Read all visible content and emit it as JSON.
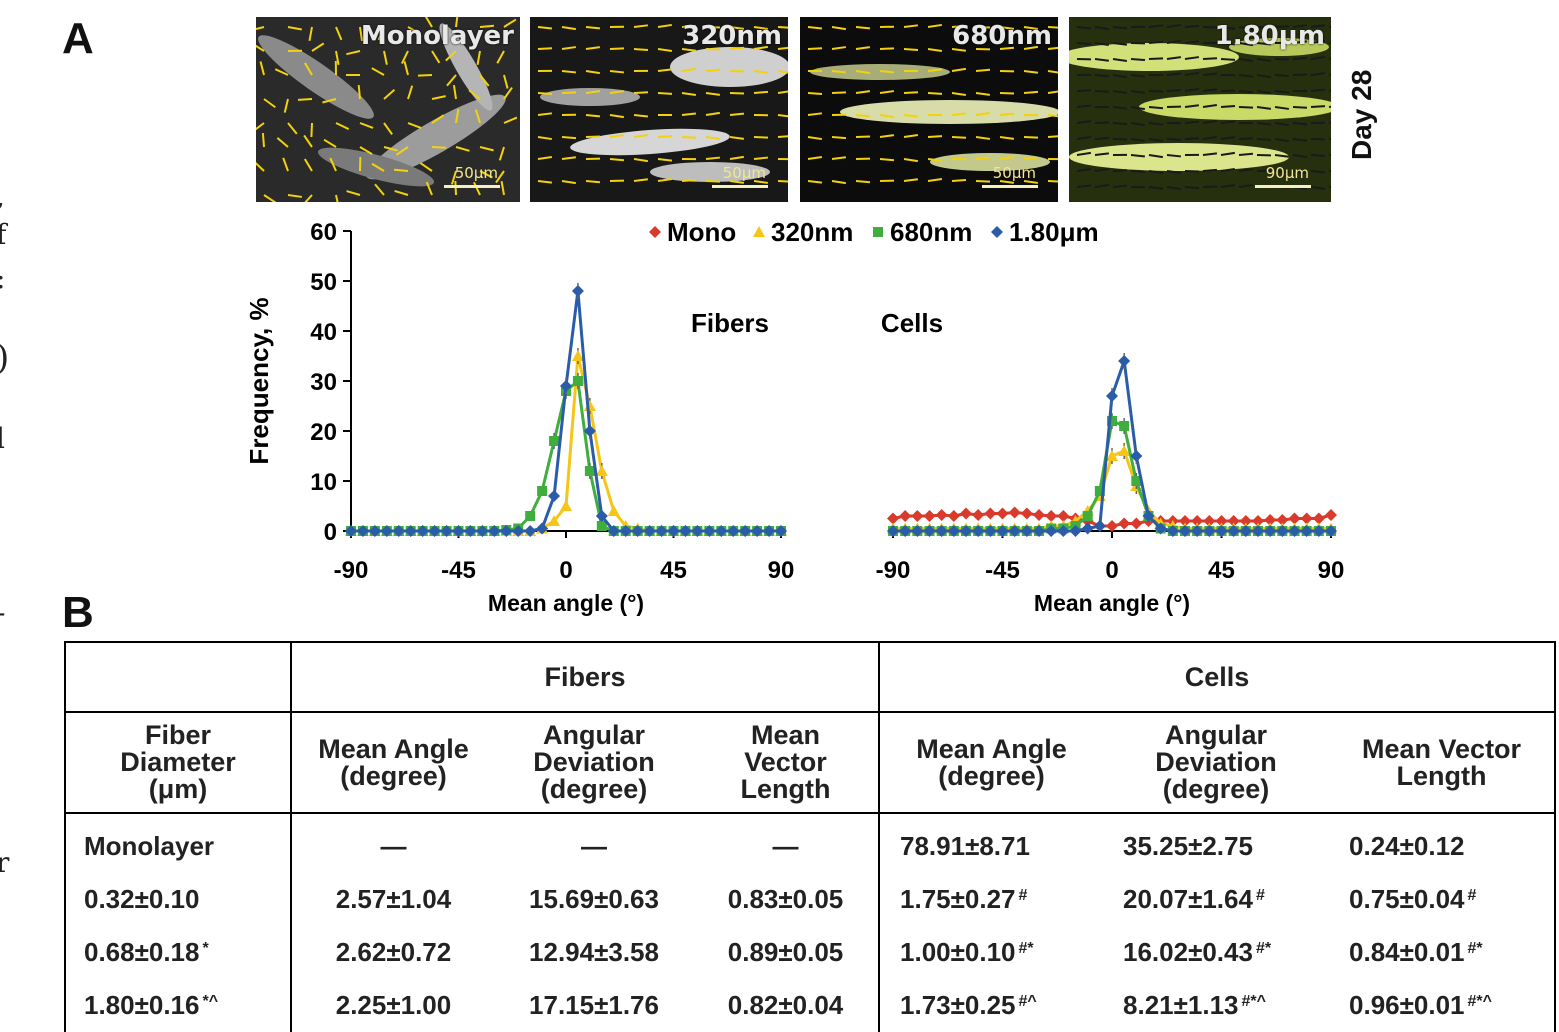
{
  "panel_a_label": "A",
  "panel_b_label": "B",
  "left_edge_fragments": [
    ",",
    "f",
    ":",
    ")",
    "l",
    "-",
    "r"
  ],
  "micrographs": [
    {
      "label": "Monolayer",
      "scale": "50μm",
      "tint": "#9a9a9a"
    },
    {
      "label": "320nm",
      "scale": "50μm",
      "tint": "#bfbfbf"
    },
    {
      "label": "680nm",
      "scale": "50μm",
      "tint": "#c9d08a"
    },
    {
      "label": "1.80μm",
      "scale": "90μm",
      "tint": "#c6d96a"
    }
  ],
  "day_label": "Day 28",
  "chart_data": {
    "type": "line",
    "ylabel": "Frequency, %",
    "xlabel": "Mean angle (°)",
    "yticks": [
      0,
      10,
      20,
      30,
      40,
      50,
      60
    ],
    "xticks": [
      -90,
      -45,
      0,
      45,
      90
    ],
    "ylim": [
      0,
      60
    ],
    "xlim": [
      -90,
      90
    ],
    "legend_position": "top",
    "legend": [
      {
        "name": "Mono",
        "color": "#d93a2b",
        "marker": "diamond"
      },
      {
        "name": "320nm",
        "color": "#f5c518",
        "marker": "triangle"
      },
      {
        "name": "680nm",
        "color": "#3fae3f",
        "marker": "square"
      },
      {
        "name": "1.80μm",
        "color": "#2b5caa",
        "marker": "diamond"
      }
    ],
    "panels": [
      {
        "title": "Fibers",
        "series": [
          {
            "name": "320nm",
            "x": [
              -90,
              -85,
              -80,
              -75,
              -70,
              -65,
              -60,
              -55,
              -50,
              -45,
              -40,
              -35,
              -30,
              -25,
              -20,
              -15,
              -10,
              -5,
              0,
              5,
              10,
              15,
              20,
              25,
              30,
              35,
              40,
              45,
              50,
              55,
              60,
              65,
              70,
              75,
              80,
              85,
              90
            ],
            "y": [
              0,
              0,
              0,
              0,
              0,
              0,
              0,
              0,
              0,
              0,
              0,
              0,
              0,
              0,
              0,
              0,
              0.5,
              2,
              5,
              35,
              25,
              12,
              4,
              1,
              0.5,
              0,
              0,
              0,
              0,
              0,
              0,
              0,
              0,
              0,
              0,
              0,
              0
            ]
          },
          {
            "name": "680nm",
            "x": [
              -90,
              -85,
              -80,
              -75,
              -70,
              -65,
              -60,
              -55,
              -50,
              -45,
              -40,
              -35,
              -30,
              -25,
              -20,
              -15,
              -10,
              -5,
              0,
              5,
              10,
              15,
              20,
              25,
              30,
              35,
              40,
              45,
              50,
              55,
              60,
              65,
              70,
              75,
              80,
              85,
              90
            ],
            "y": [
              0,
              0,
              0,
              0,
              0,
              0,
              0,
              0,
              0,
              0,
              0,
              0,
              0,
              0.2,
              0.5,
              3,
              8,
              18,
              28,
              30,
              12,
              1,
              0,
              0,
              0,
              0,
              0,
              0,
              0,
              0,
              0,
              0,
              0,
              0,
              0,
              0,
              0
            ]
          },
          {
            "name": "1.80μm",
            "x": [
              -90,
              -85,
              -80,
              -75,
              -70,
              -65,
              -60,
              -55,
              -50,
              -45,
              -40,
              -35,
              -30,
              -25,
              -20,
              -15,
              -10,
              -5,
              0,
              5,
              10,
              15,
              20,
              25,
              30,
              35,
              40,
              45,
              50,
              55,
              60,
              65,
              70,
              75,
              80,
              85,
              90
            ],
            "y": [
              0,
              0,
              0,
              0,
              0,
              0,
              0,
              0,
              0,
              0,
              0,
              0,
              0,
              0,
              0,
              0,
              0.5,
              7,
              29,
              48,
              20,
              3,
              0,
              0,
              0,
              0,
              0,
              0,
              0,
              0,
              0,
              0,
              0,
              0,
              0,
              0,
              0
            ]
          }
        ]
      },
      {
        "title": "Cells",
        "series": [
          {
            "name": "Mono",
            "x": [
              -90,
              -85,
              -80,
              -75,
              -70,
              -65,
              -60,
              -55,
              -50,
              -45,
              -40,
              -35,
              -30,
              -25,
              -20,
              -15,
              -10,
              -5,
              0,
              5,
              10,
              15,
              20,
              25,
              30,
              35,
              40,
              45,
              50,
              55,
              60,
              65,
              70,
              75,
              80,
              85,
              90
            ],
            "y": [
              2.5,
              3,
              3,
              3,
              3.2,
              3,
              3.5,
              3.2,
              3.5,
              3.5,
              3.7,
              3.5,
              3.2,
              3,
              3,
              2.5,
              2,
              1,
              1,
              1.5,
              1.5,
              2,
              2,
              2,
              2,
              2,
              2,
              2,
              2,
              2,
              2,
              2.2,
              2.2,
              2.5,
              2.5,
              2.5,
              3.2
            ]
          },
          {
            "name": "320nm",
            "x": [
              -90,
              -85,
              -80,
              -75,
              -70,
              -65,
              -60,
              -55,
              -50,
              -45,
              -40,
              -35,
              -30,
              -25,
              -20,
              -15,
              -10,
              -5,
              0,
              5,
              10,
              15,
              20,
              25,
              30,
              35,
              40,
              45,
              50,
              55,
              60,
              65,
              70,
              75,
              80,
              85,
              90
            ],
            "y": [
              0.5,
              0.5,
              0.5,
              0.5,
              0.5,
              0.5,
              0.5,
              0.5,
              0.5,
              0.5,
              0.5,
              0.5,
              0.5,
              1,
              1,
              2,
              4,
              7,
              15,
              16,
              9,
              4,
              1.5,
              1,
              0.5,
              0.5,
              0.5,
              0.5,
              0.5,
              0.5,
              0.5,
              0.5,
              0.5,
              0.5,
              0.5,
              0.5,
              0.5
            ]
          },
          {
            "name": "680nm",
            "x": [
              -90,
              -85,
              -80,
              -75,
              -70,
              -65,
              -60,
              -55,
              -50,
              -45,
              -40,
              -35,
              -30,
              -25,
              -20,
              -15,
              -10,
              -5,
              0,
              5,
              10,
              15,
              20,
              25,
              30,
              35,
              40,
              45,
              50,
              55,
              60,
              65,
              70,
              75,
              80,
              85,
              90
            ],
            "y": [
              0,
              0,
              0,
              0,
              0,
              0,
              0,
              0,
              0,
              0,
              0,
              0,
              0,
              0.5,
              0.5,
              1,
              3,
              8,
              22,
              21,
              10,
              3,
              0.5,
              0,
              0,
              0,
              0,
              0,
              0,
              0,
              0,
              0,
              0,
              0,
              0,
              0,
              0
            ]
          },
          {
            "name": "1.80μm",
            "x": [
              -90,
              -85,
              -80,
              -75,
              -70,
              -65,
              -60,
              -55,
              -50,
              -45,
              -40,
              -35,
              -30,
              -25,
              -20,
              -15,
              -10,
              -5,
              0,
              5,
              10,
              15,
              20,
              25,
              30,
              35,
              40,
              45,
              50,
              55,
              60,
              65,
              70,
              75,
              80,
              85,
              90
            ],
            "y": [
              0,
              0,
              0,
              0,
              0,
              0,
              0,
              0,
              0,
              0,
              0,
              0,
              0,
              0,
              0,
              0,
              0.5,
              1,
              27,
              34,
              15,
              3,
              0.5,
              0,
              0,
              0,
              0,
              0,
              0,
              0,
              0,
              0,
              0,
              0,
              0,
              0,
              0
            ]
          }
        ]
      }
    ]
  },
  "table": {
    "group_headers": [
      "",
      "Fibers",
      "Cells"
    ],
    "col_headers": [
      [
        "Fiber",
        "Diameter",
        "(μm)"
      ],
      [
        "Mean Angle",
        "(degree)"
      ],
      [
        "Angular",
        "Deviation",
        "(degree)"
      ],
      [
        "Mean",
        "Vector",
        "Length"
      ],
      [
        "Mean Angle",
        "(degree)"
      ],
      [
        "Angular",
        "Deviation",
        "(degree)"
      ],
      [
        "Mean  Vector",
        "Length"
      ]
    ],
    "rows": [
      {
        "cells": [
          [
            "Monolayer",
            ""
          ],
          [
            "—",
            ""
          ],
          [
            "—",
            ""
          ],
          [
            "—",
            ""
          ],
          [
            "78.91±8.71",
            ""
          ],
          [
            "35.25±2.75",
            ""
          ],
          [
            "0.24±0.12",
            ""
          ]
        ]
      },
      {
        "cells": [
          [
            "0.32±0.10",
            ""
          ],
          [
            "2.57±1.04",
            ""
          ],
          [
            "15.69±0.63",
            ""
          ],
          [
            "0.83±0.05",
            ""
          ],
          [
            "1.75±0.27",
            "#"
          ],
          [
            "20.07±1.64",
            "#"
          ],
          [
            "0.75±0.04",
            "#"
          ]
        ]
      },
      {
        "cells": [
          [
            "0.68±0.18",
            "*"
          ],
          [
            "2.62±0.72",
            ""
          ],
          [
            "12.94±3.58",
            ""
          ],
          [
            "0.89±0.05",
            ""
          ],
          [
            "1.00±0.10",
            "#*"
          ],
          [
            "16.02±0.43",
            "#*"
          ],
          [
            "0.84±0.01",
            "#*"
          ]
        ]
      },
      {
        "cells": [
          [
            "1.80±0.16",
            "*^"
          ],
          [
            "2.25±1.00",
            ""
          ],
          [
            "17.15±1.76",
            ""
          ],
          [
            "0.82±0.04",
            ""
          ],
          [
            "1.73±0.25",
            "#^"
          ],
          [
            "8.21±1.13",
            "#*^"
          ],
          [
            "0.96±0.01",
            "#*^"
          ]
        ]
      }
    ]
  }
}
